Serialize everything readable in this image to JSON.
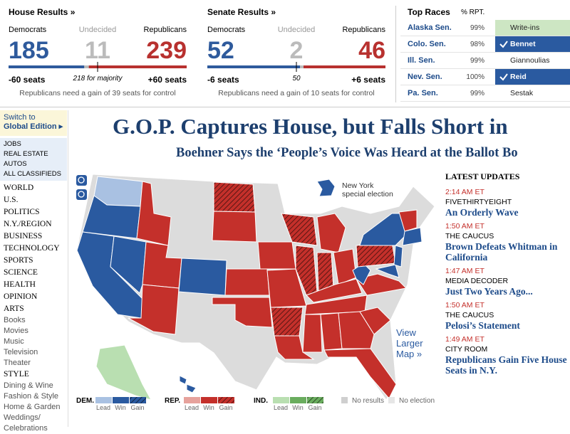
{
  "house": {
    "title": "House Results »",
    "labels": [
      "Democrats",
      "Undecided",
      "Republicans"
    ],
    "counts": [
      185,
      11,
      239
    ],
    "colors": [
      "#2e5a9c",
      "#bbbbbb",
      "#b8312f"
    ],
    "changes": [
      "-60 seats",
      "218 for majority",
      "+60 seats"
    ],
    "note": "Republicans need a gain of 39 seats for control"
  },
  "senate": {
    "title": "Senate Results »",
    "labels": [
      "Democrats",
      "Undecided",
      "Republicans"
    ],
    "counts": [
      52,
      2,
      46
    ],
    "colors": [
      "#2e5a9c",
      "#bbbbbb",
      "#b8312f"
    ],
    "changes": [
      "-6 seats",
      "50",
      "+6 seats"
    ],
    "note": "Republicans need a gain of 10 seats for control"
  },
  "top_races": {
    "title": "Top Races",
    "pct_header": "% RPT.",
    "rows": [
      {
        "name": "Alaska Sen.",
        "pct": "99%",
        "candidate": "Write-ins",
        "color": "#cde6c3",
        "winner": false
      },
      {
        "name": "Colo. Sen.",
        "pct": "98%",
        "candidate": "Bennet",
        "color": "#2a5aa0",
        "winner": true
      },
      {
        "name": "Ill. Sen.",
        "pct": "99%",
        "candidate": "Giannoulias",
        "color": "#ffffff",
        "winner": false
      },
      {
        "name": "Nev. Sen.",
        "pct": "100%",
        "candidate": "Reid",
        "color": "#2a5aa0",
        "winner": true
      },
      {
        "name": "Pa. Sen.",
        "pct": "99%",
        "candidate": "Sestak",
        "color": "#ffffff",
        "winner": false
      }
    ]
  },
  "nav": {
    "switch": "Switch to",
    "edition": "Global Edition ▸",
    "classifieds": [
      "JOBS",
      "REAL ESTATE",
      "AUTOS",
      "ALL CLASSIFIEDS"
    ],
    "sections": [
      {
        "text": "WORLD",
        "style": "main"
      },
      {
        "text": "U.S.",
        "style": "main"
      },
      {
        "text": "POLITICS",
        "style": "main"
      },
      {
        "text": "N.Y./REGION",
        "style": "main"
      },
      {
        "text": "BUSINESS",
        "style": "main"
      },
      {
        "text": "TECHNOLOGY",
        "style": "main"
      },
      {
        "text": "SPORTS",
        "style": "main"
      },
      {
        "text": "SCIENCE",
        "style": "main"
      },
      {
        "text": "HEALTH",
        "style": "main"
      },
      {
        "text": "OPINION",
        "style": "main"
      },
      {
        "text": "ARTS",
        "style": "main"
      },
      {
        "text": "Books",
        "style": "sub"
      },
      {
        "text": "Movies",
        "style": "sub"
      },
      {
        "text": "Music",
        "style": "sub"
      },
      {
        "text": "Television",
        "style": "sub"
      },
      {
        "text": "Theater",
        "style": "sub"
      },
      {
        "text": "STYLE",
        "style": "main"
      },
      {
        "text": "Dining & Wine",
        "style": "sub"
      },
      {
        "text": "Fashion & Style",
        "style": "sub"
      },
      {
        "text": "Home & Garden",
        "style": "sub"
      },
      {
        "text": "Weddings/ Celebrations",
        "style": "sub"
      }
    ]
  },
  "headline": "G.O.P. Captures House, but Falls Short in",
  "subheadline": "Boehner Says the ‘People’s Voice Was Heard at the Ballot Bo",
  "map": {
    "inset_label": [
      "New York",
      "special election"
    ],
    "view_larger": [
      "View",
      "Larger",
      "Map »"
    ],
    "legend": [
      {
        "party": "DEM.",
        "colors": [
          "#a9c1e2",
          "#2a5aa0",
          "#1d3d6e"
        ],
        "labels": [
          "Lead",
          "Win",
          "Gain"
        ]
      },
      {
        "party": "REP.",
        "colors": [
          "#e6a29c",
          "#c4302b",
          "#8a1f1b"
        ],
        "labels": [
          "Lead",
          "Win",
          "Gain"
        ]
      },
      {
        "party": "IND.",
        "colors": [
          "#b9dfb1",
          "#6aad5e",
          "#2f6b28"
        ],
        "labels": [
          "Lead",
          "Win",
          "Gain"
        ]
      }
    ],
    "no_results": "No results",
    "no_election": "No election"
  },
  "updates": {
    "title": "LATEST UPDATES",
    "items": [
      {
        "time": "2:14 AM ET",
        "section": "FIVETHIRTYEIGHT",
        "headline": "An Orderly Wave"
      },
      {
        "time": "1:50 AM ET",
        "section": "THE CAUCUS",
        "headline": "Brown Defeats Whitman in California"
      },
      {
        "time": "1:47 AM ET",
        "section": "MEDIA DECODER",
        "headline": "Just Two Years Ago..."
      },
      {
        "time": "1:50 AM ET",
        "section": "THE CAUCUS",
        "headline": "Pelosi’s Statement"
      },
      {
        "time": "1:49 AM ET",
        "section": "CITY ROOM",
        "headline": "Republicans Gain Five House Seats in N.Y."
      }
    ]
  }
}
